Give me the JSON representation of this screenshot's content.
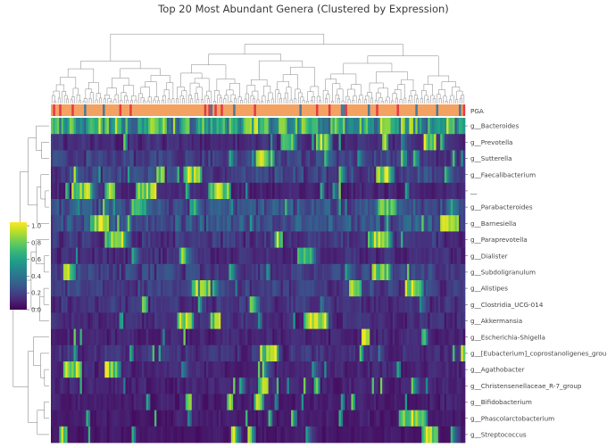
{
  "chart_data": {
    "type": "heatmap",
    "title": "Top 20 Most Abundant Genera (Clustered by Expression)",
    "column_annotation": {
      "label": "PGA",
      "default_color": "#f4a261",
      "accent_colors": [
        "#e63946",
        "#457b9d"
      ]
    },
    "rows": [
      "g__Bacteroides",
      "g__Prevotella",
      "g__Sutterella",
      "g__Faecalibacterium",
      "__",
      "g__Parabacteroides",
      "g__Barnesiella",
      "g__Paraprevotella",
      "g__Dialister",
      "g__Subdoligranulum",
      "g__Alistipes",
      "g__Clostridia_UCG-014",
      "g__Akkermansia",
      "g__Escherichia-Shigella",
      "g__[Eubacterium]_coprostanoligenes_group",
      "g__Agathobacter",
      "g__Christensenellaceae_R-7_group",
      "g__Bifidobacterium",
      "g__Phascolarctobacterium",
      "g__Streptococcus"
    ],
    "n_samples": 200,
    "value_range": [
      0,
      1
    ],
    "colorbar": {
      "colormap": "viridis",
      "ticks": [
        0.0,
        0.2,
        0.4,
        0.6,
        0.8,
        1.0
      ],
      "tick_labels": [
        "0.0",
        "0.2",
        "0.4",
        "0.6",
        "0.8",
        "1.0"
      ]
    },
    "row_mean_levels": [
      0.6,
      0.12,
      0.18,
      0.2,
      0.1,
      0.25,
      0.25,
      0.15,
      0.12,
      0.18,
      0.18,
      0.14,
      0.12,
      0.1,
      0.14,
      0.1,
      0.1,
      0.08,
      0.08,
      0.06
    ],
    "dendrograms": {
      "rows": true,
      "columns": true
    },
    "grid": false
  }
}
